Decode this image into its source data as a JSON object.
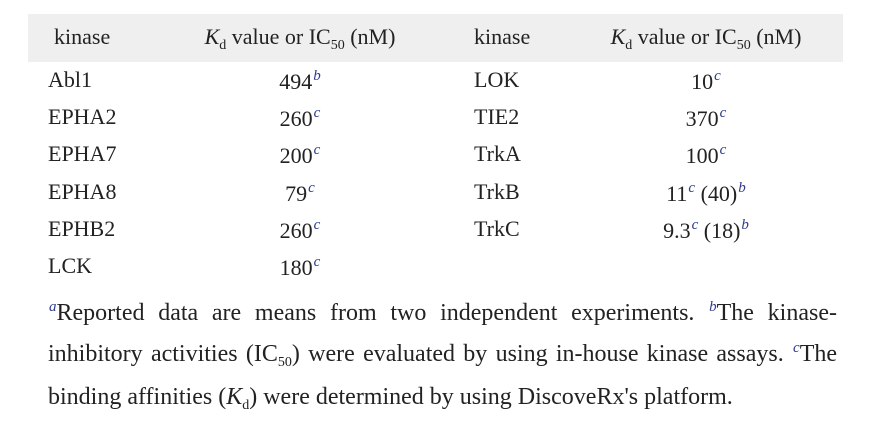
{
  "table": {
    "header": [
      {
        "text": "kinase"
      },
      {
        "symbol": "K",
        "symbol_sub": "d",
        "text": "value or IC",
        "sub": "50",
        "unit": "(nM)"
      },
      {
        "text": "kinase"
      },
      {
        "symbol": "K",
        "symbol_sub": "d",
        "text": "value or IC",
        "sub": "50",
        "unit": "(nM)"
      }
    ],
    "left_rows": [
      [
        {
          "text": "Abl1"
        },
        {
          "text": "494",
          "note": "b"
        }
      ],
      [
        {
          "text": "EPHA2"
        },
        {
          "text": "260",
          "note": "c"
        }
      ],
      [
        {
          "text": "EPHA7"
        },
        {
          "text": "200",
          "note": "c"
        }
      ],
      [
        {
          "text": "EPHA8"
        },
        {
          "text": "79",
          "note": "c"
        }
      ],
      [
        {
          "text": "EPHB2"
        },
        {
          "text": "260",
          "note": "c"
        }
      ],
      [
        {
          "text": "LCK"
        },
        {
          "text": "180",
          "note": "c"
        }
      ]
    ],
    "right_rows": [
      [
        {
          "text": "LOK"
        },
        {
          "text": "10",
          "note": "c"
        }
      ],
      [
        {
          "text": "TIE2"
        },
        {
          "text": "370",
          "note": "c"
        }
      ],
      [
        {
          "text": "TrkA"
        },
        {
          "text": "100",
          "note": "c"
        }
      ],
      [
        {
          "text": "TrkB"
        },
        {
          "text": "11",
          "note": "c",
          "extra": "(40)",
          "extra_note": "b"
        }
      ],
      [
        {
          "text": "TrkC"
        },
        {
          "text": "9.3",
          "note": "c",
          "extra": "(18)",
          "extra_note": "b"
        }
      ]
    ]
  },
  "footnote": [
    {
      "sup": "a"
    },
    {
      "text": "Reported data are means from two independent experiments. "
    },
    {
      "sup": "b"
    },
    {
      "text": "The kinase-inhibitory activities (IC"
    },
    {
      "sub": "50"
    },
    {
      "text": ") were evaluated by using in-house kinase assays. "
    },
    {
      "sup": "c"
    },
    {
      "text": "The binding affinities ("
    },
    {
      "italic": "K"
    },
    {
      "sub": "d"
    },
    {
      "text": ") were determined by using DiscoveRx's platform."
    }
  ]
}
